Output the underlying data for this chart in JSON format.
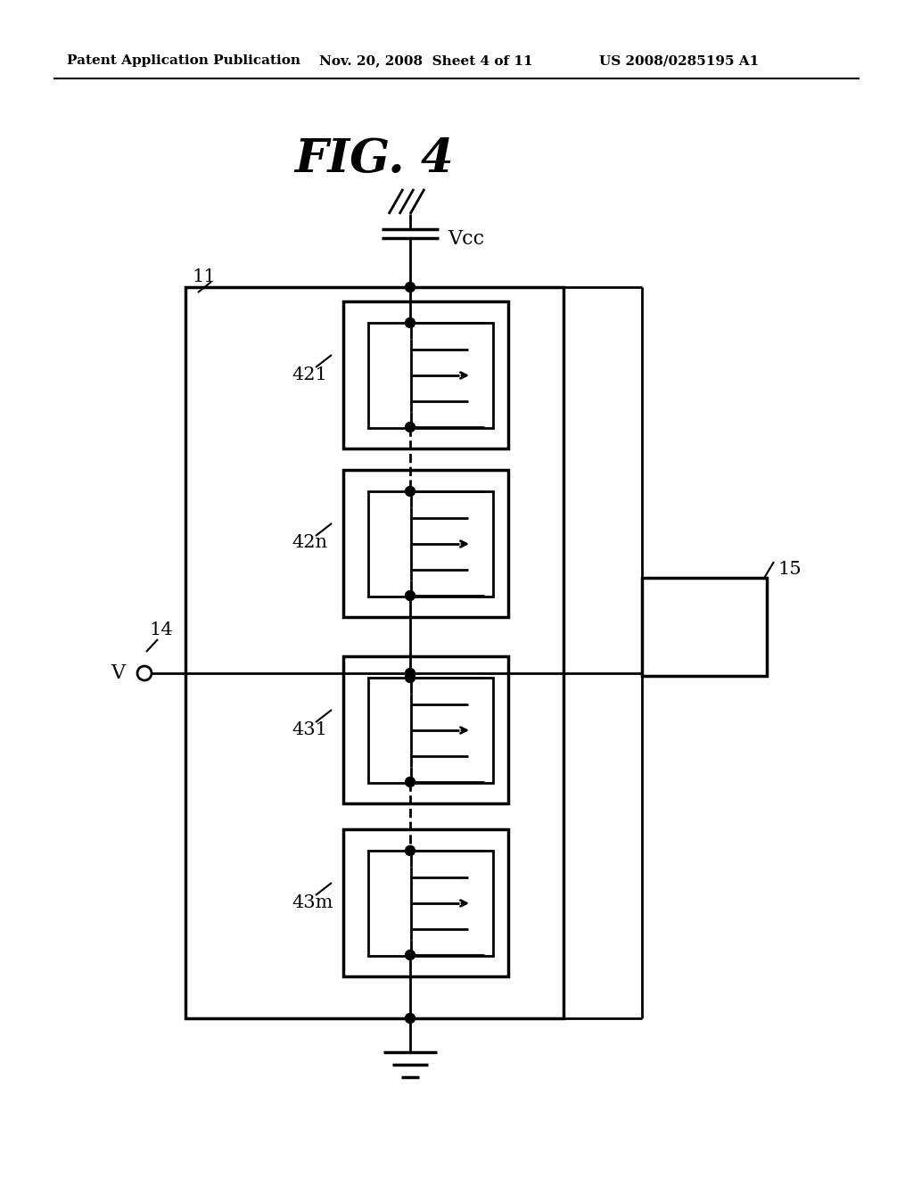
{
  "bg_color": "#ffffff",
  "line_color": "#000000",
  "header_left": "Patent Application Publication",
  "header_mid": "Nov. 20, 2008  Sheet 4 of 11",
  "header_right": "US 2008/0285195 A1",
  "fig_title": "FIG. 4",
  "label_11": "11",
  "label_14": "14",
  "label_15": "15",
  "label_Vcc": "Vcc",
  "label_V": "V",
  "label_421": "421",
  "label_42n": "42n",
  "label_431": "431",
  "label_43m": "43m"
}
